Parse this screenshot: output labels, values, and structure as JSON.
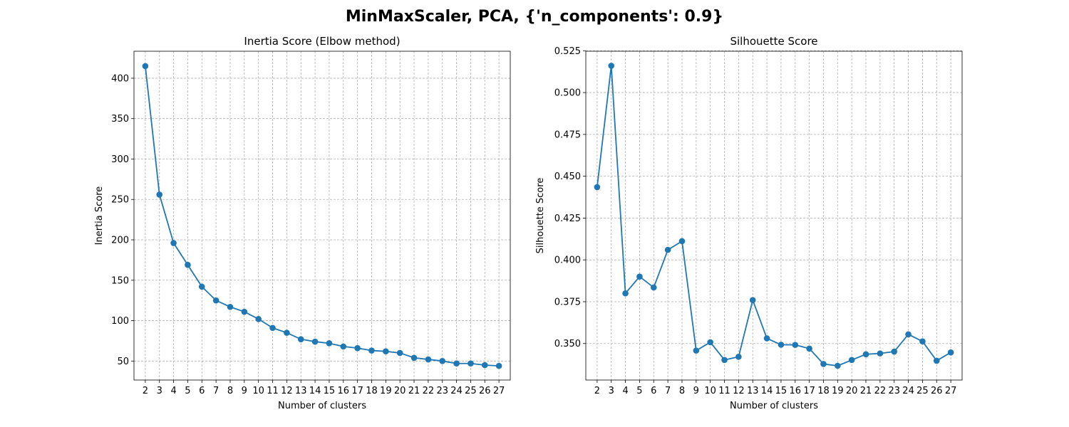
{
  "suptitle": "MinMaxScaler, PCA, {'n_components': 0.9}",
  "colors": {
    "series": "#1f77b4",
    "grid": "#b0b0b0",
    "axes": "#000000"
  },
  "chart_data": [
    {
      "type": "line",
      "title": "Inertia Score (Elbow method)",
      "xlabel": "Number of clusters",
      "ylabel": "Inertia Score",
      "grid": true,
      "marker": "circle",
      "x": [
        2,
        3,
        4,
        5,
        6,
        7,
        8,
        9,
        10,
        11,
        12,
        13,
        14,
        15,
        16,
        17,
        18,
        19,
        20,
        21,
        22,
        23,
        24,
        25,
        26,
        27
      ],
      "y": [
        415,
        256,
        196,
        169,
        142,
        125,
        117,
        111,
        102,
        91,
        85,
        77,
        74,
        72,
        68,
        66,
        63,
        62,
        60,
        54,
        52,
        50,
        47,
        47,
        45,
        44
      ],
      "xlim": [
        1.2,
        27.8
      ],
      "ylim": [
        26.5,
        433.4
      ],
      "yticks": [
        50,
        100,
        150,
        200,
        250,
        300,
        350,
        400
      ],
      "ytick_labels": [
        "50",
        "100",
        "150",
        "200",
        "250",
        "300",
        "350",
        "400"
      ]
    },
    {
      "type": "line",
      "title": "Silhouette Score",
      "xlabel": "Number of clusters",
      "ylabel": "Silhouette Score",
      "grid": true,
      "marker": "circle",
      "x": [
        2,
        3,
        4,
        5,
        6,
        7,
        8,
        9,
        10,
        11,
        12,
        13,
        14,
        15,
        16,
        17,
        18,
        19,
        20,
        21,
        22,
        23,
        24,
        25,
        26,
        27
      ],
      "y": [
        0.4435,
        0.516,
        0.38,
        0.39,
        0.3835,
        0.406,
        0.4112,
        0.3458,
        0.3508,
        0.3402,
        0.3421,
        0.376,
        0.3531,
        0.3493,
        0.3492,
        0.347,
        0.3378,
        0.3367,
        0.3402,
        0.3436,
        0.3441,
        0.3452,
        0.3555,
        0.3513,
        0.3397,
        0.3447
      ],
      "xlim": [
        1.2,
        27.8
      ],
      "ylim": [
        0.3282,
        0.5247
      ],
      "yticks": [
        0.35,
        0.375,
        0.4,
        0.425,
        0.45,
        0.475,
        0.5,
        0.525
      ],
      "ytick_labels": [
        "0.350",
        "0.375",
        "0.400",
        "0.425",
        "0.450",
        "0.475",
        "0.500",
        "0.525"
      ]
    }
  ]
}
